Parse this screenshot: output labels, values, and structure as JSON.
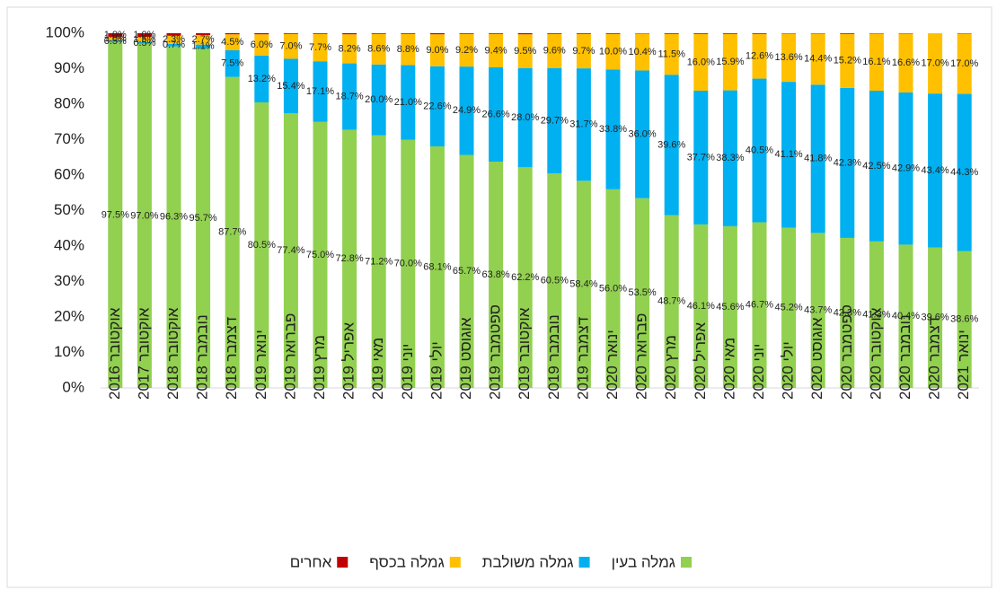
{
  "chart_data": {
    "type": "stacked_bar",
    "categories": [
      "אוקטובר 2016",
      "אוקטובר 2017",
      "אוקטובר 2018",
      "נובמבר 2018",
      "דצמבר 2018",
      "ינואר 2019",
      "פברואר 2019",
      "מרץ 2019",
      "אפריל 2019",
      "מאי 2019",
      "יוני 2019",
      "יולי 2019",
      "אוגוסט 2019",
      "ספטמבר 2019",
      "אוקטובר 2019",
      "נובמבר 2019",
      "דצמבר 2019",
      "ינואר 2020",
      "פברואר 2020",
      "מרץ 2020",
      "אפריל 2020",
      "מאי 2020",
      "יוני 2020",
      "יולי 2020",
      "אוגוסט 2020",
      "ספטמבר 2020",
      "אוקטובר 2020",
      "נובמבר 2020",
      "דצמבר 2020",
      "ינואר 2021"
    ],
    "series": [
      {
        "name": "גמלה בעין",
        "color": "#92d050",
        "values": [
          97.5,
          97.0,
          96.3,
          95.7,
          87.7,
          80.5,
          77.4,
          75.0,
          72.8,
          71.2,
          70.0,
          68.1,
          65.7,
          63.8,
          62.2,
          60.5,
          58.4,
          56.0,
          53.5,
          48.7,
          46.1,
          45.6,
          46.7,
          45.2,
          43.7,
          42.3,
          41.3,
          40.4,
          39.6,
          38.6
        ],
        "value_labels": [
          "97.5%",
          "97.0%",
          "96.3%",
          "95.7%",
          "87.7%",
          "80.5%",
          "77.4%",
          "75.0%",
          "72.8%",
          "71.2%",
          "70.0%",
          "68.1%",
          "65.7%",
          "63.8%",
          "62.2%",
          "60.5%",
          "58.4%",
          "56.0%",
          "53.5%",
          "48.7%",
          "46.1%",
          "45.6%",
          "46.7%",
          "45.2%",
          "43.7%",
          "42.3%",
          "41.3%",
          "40.4%",
          "39.6%",
          "38.6%"
        ]
      },
      {
        "name": "גמלה משולבת",
        "color": "#00b0f0",
        "values": [
          0.5,
          0.5,
          0.7,
          1.1,
          7.5,
          13.2,
          15.4,
          17.1,
          18.7,
          20.0,
          21.0,
          22.6,
          24.9,
          26.6,
          28.0,
          29.7,
          31.7,
          33.8,
          36.0,
          39.6,
          37.7,
          38.3,
          40.5,
          41.1,
          41.8,
          42.3,
          42.5,
          42.9,
          43.4,
          44.3
        ],
        "value_labels": [
          "0.5%",
          "0.5%",
          "0.7%",
          "1.1%",
          "7.5%",
          "13.2%",
          "15.4%",
          "17.1%",
          "18.7%",
          "20.0%",
          "21.0%",
          "22.6%",
          "24.9%",
          "26.6%",
          "28.0%",
          "29.7%",
          "31.7%",
          "33.8%",
          "36.0%",
          "39.6%",
          "37.7%",
          "38.3%",
          "40.5%",
          "41.1%",
          "41.8%",
          "42.3%",
          "42.5%",
          "42.9%",
          "43.4%",
          "44.3%"
        ]
      },
      {
        "name": "גמלה בכסף",
        "color": "#ffc000",
        "values": [
          1.0,
          1.5,
          2.3,
          2.7,
          4.5,
          6.0,
          7.0,
          7.7,
          8.2,
          8.6,
          8.8,
          9.0,
          9.2,
          9.4,
          9.5,
          9.6,
          9.7,
          10.0,
          10.4,
          11.5,
          16.0,
          15.9,
          12.6,
          13.6,
          14.4,
          15.2,
          16.1,
          16.6,
          17.0,
          17.0
        ],
        "value_labels": [
          "1.0%",
          "1.5%",
          "2.3%",
          "2.7%",
          "4.5%",
          "6.0%",
          "7.0%",
          "7.7%",
          "8.2%",
          "8.6%",
          "8.8%",
          "9.0%",
          "9.2%",
          "9.4%",
          "9.5%",
          "9.6%",
          "9.7%",
          "10.0%",
          "10.4%",
          "11.5%",
          "16.0%",
          "15.9%",
          "12.6%",
          "13.6%",
          "14.4%",
          "15.2%",
          "16.1%",
          "16.6%",
          "17.0%",
          "17.0%"
        ]
      },
      {
        "name": "אחרים",
        "color": "#c00000",
        "values": [
          1.0,
          1.0,
          0.7,
          0.5,
          0.3,
          0.3,
          0.2,
          0.2,
          0.3,
          0.2,
          0.2,
          0.3,
          0.2,
          0.2,
          0.3,
          0.2,
          0.2,
          0.2,
          0.1,
          0.2,
          0.2,
          0.2,
          0.2,
          0.1,
          0.1,
          0.2,
          0.1,
          0.1,
          0.0,
          0.1
        ],
        "value_labels": [
          "1.0%",
          "1.0%",
          null,
          null,
          null,
          null,
          null,
          null,
          null,
          null,
          null,
          null,
          null,
          null,
          null,
          null,
          null,
          null,
          null,
          null,
          null,
          null,
          null,
          null,
          null,
          null,
          null,
          null,
          null,
          null
        ]
      }
    ],
    "ylim": [
      0,
      100
    ],
    "yticks": [
      {
        "value": 0,
        "label": "0%"
      },
      {
        "value": 10,
        "label": "10%"
      },
      {
        "value": 20,
        "label": "20%"
      },
      {
        "value": 30,
        "label": "30%"
      },
      {
        "value": 40,
        "label": "40%"
      },
      {
        "value": 50,
        "label": "50%"
      },
      {
        "value": 60,
        "label": "60%"
      },
      {
        "value": 70,
        "label": "70%"
      },
      {
        "value": 80,
        "label": "80%"
      },
      {
        "value": 90,
        "label": "90%"
      },
      {
        "value": 100,
        "label": "100%"
      }
    ],
    "grid": false,
    "legend": "bottom"
  }
}
